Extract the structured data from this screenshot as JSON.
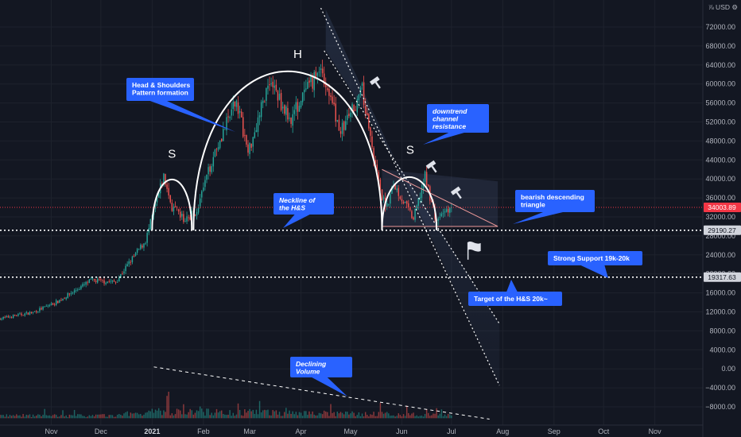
{
  "chart_data": {
    "type": "candlestick",
    "title": "",
    "unit_label": "⅞ USD ⚙",
    "y_ticks": [
      72000,
      68000,
      64000,
      60000,
      56000,
      52000,
      48000,
      44000,
      40000,
      36000,
      32000,
      28000,
      24000,
      20000,
      16000,
      12000,
      8000,
      4000,
      0,
      -4000,
      -8000
    ],
    "y_tick_labels": [
      "72000.00",
      "68000.00",
      "64000.00",
      "60000.00",
      "56000.00",
      "52000.00",
      "48000.00",
      "44000.00",
      "40000.00",
      "36000.00",
      "32000.00",
      "28000.00",
      "24000.00",
      "20000.00",
      "16000.00",
      "12000.00",
      "8000.00",
      "4000.00",
      "0.00",
      "−4000.00",
      "−8000.00"
    ],
    "ylim": [
      -11000,
      76000
    ],
    "x_ticks": [
      "Nov",
      "Dec",
      "2021",
      "Feb",
      "Mar",
      "Apr",
      "May",
      "Jun",
      "Jul",
      "Aug",
      "Sep",
      "Oct",
      "Nov"
    ],
    "x_tick_dates": [
      "2020-11-01",
      "2020-12-01",
      "2021-01-01",
      "2021-02-01",
      "2021-03-01",
      "2021-04-01",
      "2021-05-01",
      "2021-06-01",
      "2021-07-01",
      "2021-08-01",
      "2021-09-01",
      "2021-10-01",
      "2021-11-01"
    ],
    "xlim": [
      "2020-10-01",
      "2021-11-30"
    ],
    "price_labels": [
      {
        "value": 34003.89,
        "text": "34003.89",
        "bg": "#f23645",
        "fg": "#ffffff"
      },
      {
        "value": 29190.27,
        "text": "29190.27",
        "bg": "#d1d4dc",
        "fg": "#131722"
      },
      {
        "value": 19317.63,
        "text": "19317.63",
        "bg": "#d1d4dc",
        "fg": "#131722"
      }
    ],
    "keypoints": [
      {
        "date": "2020-10-01",
        "price": 10600
      },
      {
        "date": "2020-10-21",
        "price": 11900
      },
      {
        "date": "2020-11-05",
        "price": 14200
      },
      {
        "date": "2020-11-25",
        "price": 18600
      },
      {
        "date": "2020-12-10",
        "price": 18300
      },
      {
        "date": "2020-12-17",
        "price": 21800
      },
      {
        "date": "2020-12-28",
        "price": 27000
      },
      {
        "date": "2021-01-08",
        "price": 40500
      },
      {
        "date": "2021-01-13",
        "price": 34000
      },
      {
        "date": "2021-01-21",
        "price": 31200
      },
      {
        "date": "2021-01-28",
        "price": 33500
      },
      {
        "date": "2021-02-08",
        "price": 46000
      },
      {
        "date": "2021-02-21",
        "price": 56500
      },
      {
        "date": "2021-02-28",
        "price": 45500
      },
      {
        "date": "2021-03-13",
        "price": 61000
      },
      {
        "date": "2021-03-25",
        "price": 52500
      },
      {
        "date": "2021-04-13",
        "price": 63500
      },
      {
        "date": "2021-04-25",
        "price": 50000
      },
      {
        "date": "2021-05-08",
        "price": 58500
      },
      {
        "date": "2021-05-19",
        "price": 37000
      },
      {
        "date": "2021-05-23",
        "price": 34000
      },
      {
        "date": "2021-05-27",
        "price": 39000
      },
      {
        "date": "2021-06-08",
        "price": 31500
      },
      {
        "date": "2021-06-15",
        "price": 40500
      },
      {
        "date": "2021-06-22",
        "price": 31000
      },
      {
        "date": "2021-06-26",
        "price": 33000
      },
      {
        "date": "2021-07-01",
        "price": 34000
      }
    ],
    "volume_spikes": [
      {
        "date": "2021-01-11",
        "value": 9000
      },
      {
        "date": "2021-02-22",
        "value": 5000
      },
      {
        "date": "2021-05-19",
        "value": 5200
      },
      {
        "date": "2021-06-22",
        "value": 3400
      }
    ],
    "annotations": [
      {
        "label": "Head & Shoulders Pattern formation"
      },
      {
        "label": "Neckline of the H&S"
      },
      {
        "label": "downtrend channel resistance"
      },
      {
        "label": "bearish descending triangle"
      },
      {
        "label": "Strong Support 19k-20k"
      },
      {
        "label": "Target of the H&S 20k~"
      },
      {
        "label": "Declining Volume"
      }
    ],
    "pattern_letters": [
      "S",
      "H",
      "S"
    ],
    "colors": {
      "up": "#26a69a",
      "down": "#ef5350",
      "callout": "#2962ff",
      "background": "#131722"
    }
  },
  "callouts": {
    "hs_pattern": [
      "Head & Shoulders",
      "Pattern formation"
    ],
    "neckline": [
      "Neckline of",
      "the H&S"
    ],
    "downtrend": [
      "downtrend",
      "channel",
      "resistance"
    ],
    "triangle": [
      "bearish descending",
      "triangle"
    ],
    "support": [
      "Strong Support 19k-20k"
    ],
    "target": [
      "Target of the H&S 20k~"
    ],
    "volume": [
      "Declining",
      "Volume"
    ]
  },
  "letters": {
    "left_shoulder": "S",
    "head": "H",
    "right_shoulder": "S"
  }
}
